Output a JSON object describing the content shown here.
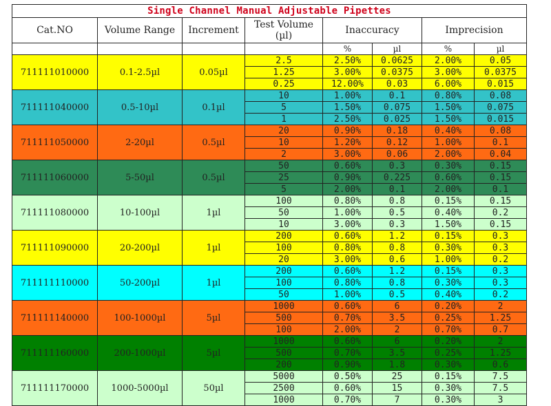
{
  "title": "Single Channel Manual Adjustable Pipettes",
  "headers": {
    "cat_no": "Cat.NO",
    "volume_range": "Volume Range",
    "increment": "Increment",
    "test_volume": "Test Volume",
    "test_volume_unit": "(µl)",
    "inaccuracy": "Inaccuracy",
    "imprecision": "Imprecision"
  },
  "subheaders": [
    "%",
    "µl",
    "%",
    "µl"
  ],
  "groups": [
    {
      "cat": "711111010000",
      "range": "0.1-2.5µl",
      "increment": "0.05µl",
      "color": "#ffff00",
      "rows": [
        [
          "2.5",
          "2.50%",
          "0.0625",
          "2.00%",
          "0.05"
        ],
        [
          "1.25",
          "3.00%",
          "0.0375",
          "3.00%",
          "0.0375"
        ],
        [
          "0.25",
          "12.00%",
          "0.03",
          "6.00%",
          "0.015"
        ]
      ]
    },
    {
      "cat": "711111040000",
      "range": "0.5-10µl",
      "increment": "0.1µl",
      "color": "#33c3c8",
      "rows": [
        [
          "10",
          "1.00%",
          "0.1",
          "0.80%",
          "0.08"
        ],
        [
          "5",
          "1.50%",
          "0.075",
          "1.50%",
          "0.075"
        ],
        [
          "1",
          "2.50%",
          "0.025",
          "1.50%",
          "0.015"
        ]
      ]
    },
    {
      "cat": "711111050000",
      "range": "2-20µl",
      "increment": "0.5µl",
      "color": "#ff6a13",
      "rows": [
        [
          "20",
          "0.90%",
          "0.18",
          "0.40%",
          "0.08"
        ],
        [
          "10",
          "1.20%",
          "0.12",
          "1.00%",
          "0.1"
        ],
        [
          "2",
          "3.00%",
          "0.06",
          "2.00%",
          "0.04"
        ]
      ]
    },
    {
      "cat": "711111060000",
      "range": "5-50µl",
      "increment": "0.5µl",
      "color": "#2e8b57",
      "rows": [
        [
          "50",
          "0.60%",
          "0.3",
          "0.30%",
          "0.15"
        ],
        [
          "25",
          "0.90%",
          "0.225",
          "0.60%",
          "0.15"
        ],
        [
          "5",
          "2.00%",
          "0.1",
          "2.00%",
          "0.1"
        ]
      ]
    },
    {
      "cat": "711111080000",
      "range": "10-100µl",
      "increment": "1µl",
      "color": "#ccffcc",
      "rows": [
        [
          "100",
          "0.80%",
          "0.8",
          "0.15%",
          "0.15"
        ],
        [
          "50",
          "1.00%",
          "0.5",
          "0.40%",
          "0.2"
        ],
        [
          "10",
          "3.00%",
          "0.3",
          "1.50%",
          "0.15"
        ]
      ]
    },
    {
      "cat": "711111090000",
      "range": "20-200µl",
      "increment": "1µl",
      "color": "#ffff00",
      "rows": [
        [
          "200",
          "0.60%",
          "1.2",
          "0.15%",
          "0.3"
        ],
        [
          "100",
          "0.80%",
          "0.8",
          "0.30%",
          "0.3"
        ],
        [
          "20",
          "3.00%",
          "0.6",
          "1.00%",
          "0.2"
        ]
      ]
    },
    {
      "cat": "711111110000",
      "range": "50-200µl",
      "increment": "1µl",
      "color": "#00ffff",
      "rows": [
        [
          "200",
          "0.60%",
          "1.2",
          "0.15%",
          "0.3"
        ],
        [
          "100",
          "0.80%",
          "0.8",
          "0.30%",
          "0.3"
        ],
        [
          "50",
          "1.00%",
          "0.5",
          "0.40%",
          "0.2"
        ]
      ]
    },
    {
      "cat": "711111140000",
      "range": "100-1000µl",
      "increment": "5µl",
      "color": "#ff6a13",
      "rows": [
        [
          "1000",
          "0.60%",
          "6",
          "0.20%",
          "2"
        ],
        [
          "500",
          "0.70%",
          "3.5",
          "0.25%",
          "1.25"
        ],
        [
          "100",
          "2.00%",
          "2",
          "0.70%",
          "0.7"
        ]
      ]
    },
    {
      "cat": "711111160000",
      "range": "200-1000µl",
      "increment": "5µl",
      "color": "#008000",
      "rows": [
        [
          "1000",
          "0.60%",
          "6",
          "0.20%",
          "2"
        ],
        [
          "500",
          "0.70%",
          "3.5",
          "0.25%",
          "1.25"
        ],
        [
          "200",
          "0.90%",
          "1.8",
          "0.30%",
          "0.6"
        ]
      ]
    },
    {
      "cat": "711111170000",
      "range": "1000-5000µl",
      "increment": "50µl",
      "color": "#ccffcc",
      "rows": [
        [
          "5000",
          "0.50%",
          "25",
          "0.15%",
          "7.5"
        ],
        [
          "2500",
          "0.60%",
          "15",
          "0.30%",
          "7.5"
        ],
        [
          "1000",
          "0.70%",
          "7",
          "0.30%",
          "3"
        ]
      ]
    }
  ]
}
